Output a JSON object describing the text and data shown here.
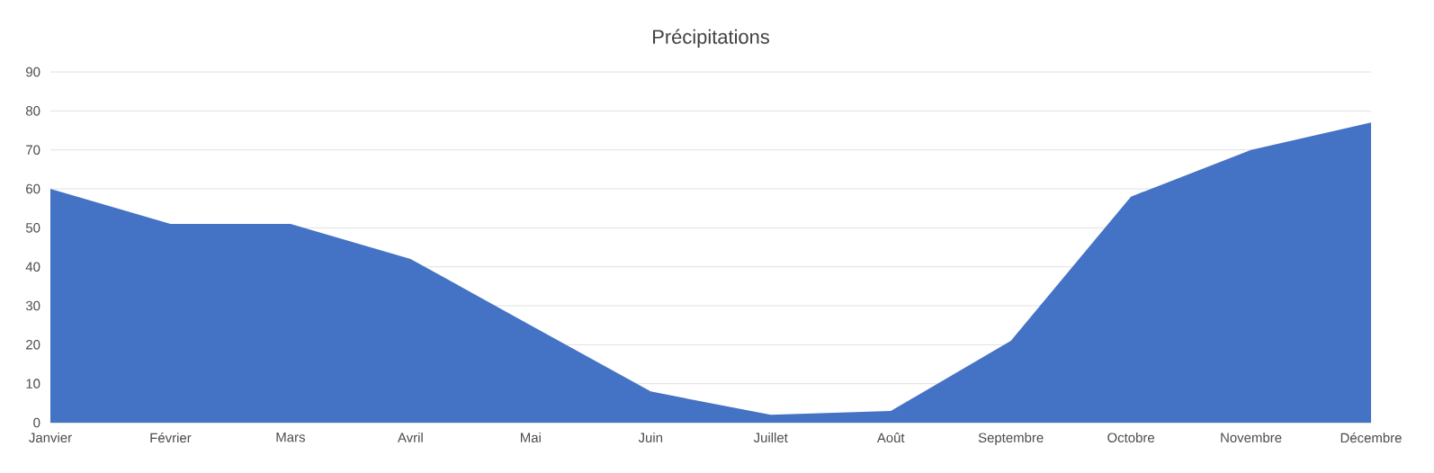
{
  "chart_data": {
    "type": "area",
    "title": "Précipitations",
    "categories": [
      "Janvier",
      "Février",
      "Mars",
      "Avril",
      "Mai",
      "Juin",
      "Juillet",
      "Août",
      "Septembre",
      "Octobre",
      "Novembre",
      "Décembre"
    ],
    "values": [
      60,
      51,
      51,
      42,
      25,
      8,
      2,
      3,
      21,
      58,
      70,
      77
    ],
    "color": "#4472c4",
    "ylim": [
      0,
      90
    ],
    "yticks": [
      0,
      10,
      20,
      30,
      40,
      50,
      60,
      70,
      80,
      90
    ],
    "grid": "y"
  }
}
